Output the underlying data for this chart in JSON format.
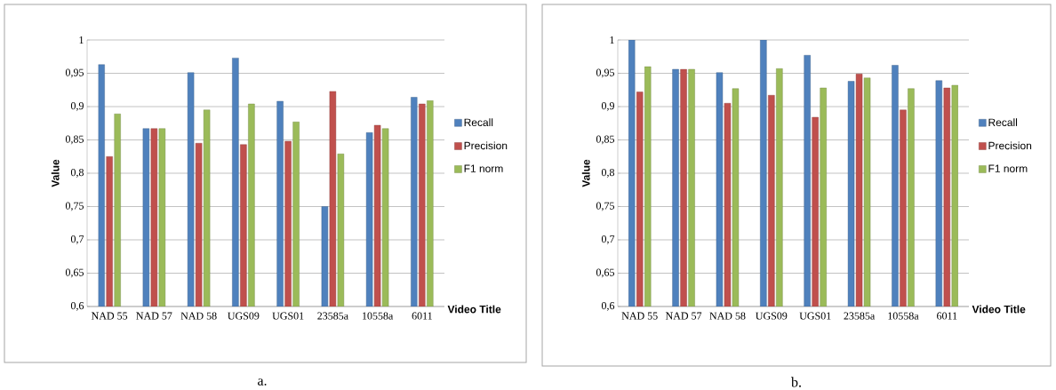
{
  "chart_data": [
    {
      "type": "bar",
      "xlabel": "Video Title",
      "ylabel": "Value",
      "annotations": [
        "a."
      ],
      "categories": [
        "NAD 55",
        "NAD 57",
        "NAD 58",
        "UGS09",
        "UGS01",
        "23585a",
        "10558a",
        "6011"
      ],
      "series": [
        {
          "name": "Recall",
          "color": "#4f81bd",
          "values": [
            0.963,
            0.867,
            0.951,
            0.973,
            0.908,
            0.75,
            0.861,
            0.914
          ]
        },
        {
          "name": "Precision",
          "color": "#c0504d",
          "values": [
            0.825,
            0.867,
            0.845,
            0.843,
            0.848,
            0.923,
            0.872,
            0.904
          ]
        },
        {
          "name": "F1 norm",
          "color": "#9bbb59",
          "values": [
            0.889,
            0.867,
            0.895,
            0.904,
            0.877,
            0.829,
            0.867,
            0.909
          ]
        }
      ],
      "ylim": [
        0.6,
        1
      ],
      "yticks": [
        {
          "value": 0.6,
          "label": "0,6"
        },
        {
          "value": 0.65,
          "label": "0,65"
        },
        {
          "value": 0.7,
          "label": "0,7"
        },
        {
          "value": 0.75,
          "label": "0,75"
        },
        {
          "value": 0.8,
          "label": "0,8"
        },
        {
          "value": 0.85,
          "label": "0,85"
        },
        {
          "value": 0.9,
          "label": "0,9"
        },
        {
          "value": 0.95,
          "label": "0,95"
        },
        {
          "value": 1,
          "label": "1"
        }
      ],
      "grid": "y",
      "legend": "right"
    },
    {
      "type": "bar",
      "xlabel": "Video Title",
      "ylabel": "Value",
      "annotations": [
        "b."
      ],
      "categories": [
        "NAD 55",
        "NAD 57",
        "NAD 58",
        "UGS09",
        "UGS01",
        "23585a",
        "10558a",
        "6011"
      ],
      "series": [
        {
          "name": "Recall",
          "color": "#4f81bd",
          "values": [
            1.0,
            0.956,
            0.951,
            1.0,
            0.977,
            0.938,
            0.962,
            0.939
          ]
        },
        {
          "name": "Precision",
          "color": "#c0504d",
          "values": [
            0.922,
            0.956,
            0.905,
            0.917,
            0.884,
            0.949,
            0.895,
            0.928
          ]
        },
        {
          "name": "F1 norm",
          "color": "#9bbb59",
          "values": [
            0.96,
            0.956,
            0.927,
            0.957,
            0.928,
            0.943,
            0.927,
            0.932
          ]
        }
      ],
      "ylim": [
        0.6,
        1
      ],
      "yticks": [
        {
          "value": 0.6,
          "label": "0,6"
        },
        {
          "value": 0.65,
          "label": "0,65"
        },
        {
          "value": 0.7,
          "label": "0,7"
        },
        {
          "value": 0.75,
          "label": "0,75"
        },
        {
          "value": 0.8,
          "label": "0,8"
        },
        {
          "value": 0.85,
          "label": "0,85"
        },
        {
          "value": 0.9,
          "label": "0,9"
        },
        {
          "value": 0.95,
          "label": "0,95"
        },
        {
          "value": 1,
          "label": "1"
        }
      ],
      "grid": "y",
      "legend": "right"
    }
  ]
}
